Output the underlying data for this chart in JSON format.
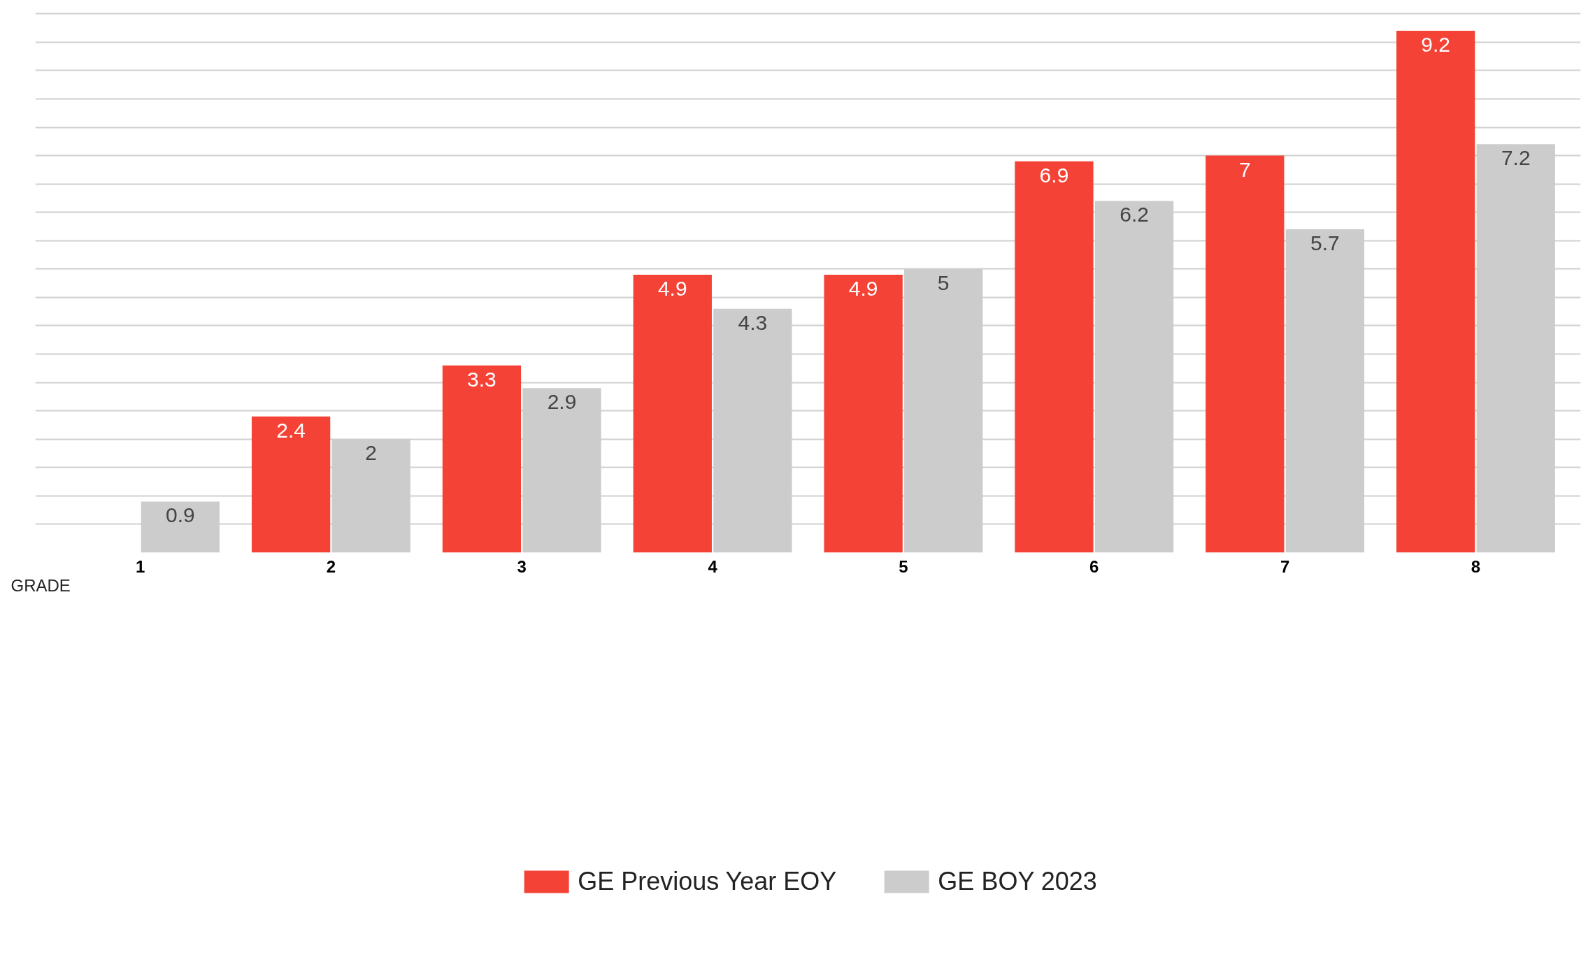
{
  "chart_data": {
    "type": "bar",
    "xlabel": "GRADE",
    "categories": [
      "1",
      "2",
      "3",
      "4",
      "5",
      "6",
      "7",
      "8"
    ],
    "series": [
      {
        "name": "GE Previous Year EOY",
        "color": "#f44336",
        "values": [
          null,
          2.4,
          3.3,
          4.9,
          4.9,
          6.9,
          7,
          9.2
        ]
      },
      {
        "name": "GE BOY 2023",
        "color": "#cccccc",
        "values": [
          0.9,
          2,
          2.9,
          4.3,
          5,
          6.2,
          5.7,
          7.2
        ]
      }
    ],
    "grid": "y",
    "tick_labels": "x",
    "legend": "bottom",
    "data_labels": true
  }
}
